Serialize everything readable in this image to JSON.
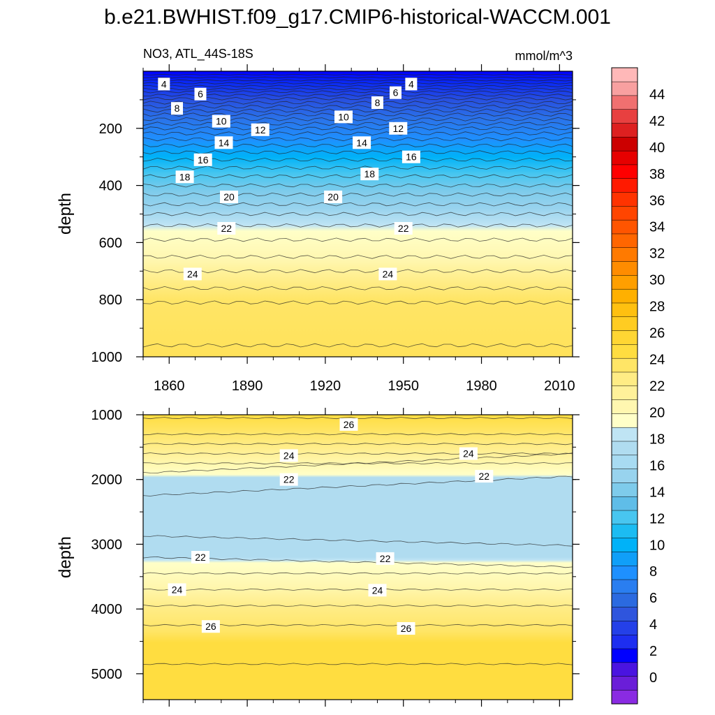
{
  "title": "b.e21.BWHIST.f09_g17.CMIP6-historical-WACCM.001",
  "chart_data": {
    "type": "contour",
    "variable": "NO3, ATL_44S-18S",
    "units": "mmol/m^3",
    "ylabel": "depth",
    "x_ticks": [
      1860,
      1890,
      1920,
      1950,
      1980,
      2010
    ],
    "xlim": [
      1850,
      2015
    ],
    "colorbar": {
      "labels": [
        0,
        2,
        4,
        6,
        8,
        10,
        12,
        14,
        16,
        18,
        20,
        22,
        24,
        26,
        28,
        30,
        32,
        34,
        36,
        38,
        40,
        42,
        44
      ],
      "colors": [
        "#8a2be2",
        "#6a1ed8",
        "#4a14e0",
        "#0000ff",
        "#1d2ef0",
        "#2440e8",
        "#2f55dd",
        "#2b6ae0",
        "#2a7ef0",
        "#1e90ff",
        "#109ff8",
        "#00b2f8",
        "#1cbcf2",
        "#48c6f0",
        "#5fbde8",
        "#7ecbeb",
        "#98d3ee",
        "#a8dbf2",
        "#b0dcf0",
        "#bfe4f4",
        "#ffffc8",
        "#fff7b0",
        "#fff19a",
        "#ffec85",
        "#ffe566",
        "#ffdd40",
        "#ffd633",
        "#ffcc22",
        "#ffc010",
        "#ffb000",
        "#ff9f00",
        "#ff8c00",
        "#ff7a00",
        "#ff6600",
        "#ff5500",
        "#ff4500",
        "#ff3300",
        "#ff1a00",
        "#ff0000",
        "#e60000",
        "#cc0000",
        "#dd2020",
        "#e84040",
        "#f07070",
        "#f8a0a0",
        "#ffb8b8"
      ]
    },
    "panels": [
      {
        "name": "upper",
        "ylim": [
          1000,
          0
        ],
        "y_ticks": [
          200,
          400,
          600,
          800,
          1000
        ],
        "contours": [
          4,
          6,
          8,
          10,
          12,
          14,
          16,
          18,
          20,
          22,
          24
        ],
        "contour_labels": [
          {
            "value": "4",
            "x": 1858,
            "y": 45
          },
          {
            "value": "6",
            "x": 1872,
            "y": 80
          },
          {
            "value": "8",
            "x": 1863,
            "y": 130
          },
          {
            "value": "10",
            "x": 1880,
            "y": 175
          },
          {
            "value": "12",
            "x": 1895,
            "y": 205
          },
          {
            "value": "14",
            "x": 1881,
            "y": 250
          },
          {
            "value": "16",
            "x": 1873,
            "y": 310
          },
          {
            "value": "18",
            "x": 1866,
            "y": 370
          },
          {
            "value": "20",
            "x": 1883,
            "y": 440
          },
          {
            "value": "22",
            "x": 1882,
            "y": 550
          },
          {
            "value": "24",
            "x": 1869,
            "y": 710
          },
          {
            "value": "4",
            "x": 1953,
            "y": 45
          },
          {
            "value": "6",
            "x": 1947,
            "y": 75
          },
          {
            "value": "8",
            "x": 1940,
            "y": 110
          },
          {
            "value": "10",
            "x": 1927,
            "y": 160
          },
          {
            "value": "12",
            "x": 1948,
            "y": 200
          },
          {
            "value": "14",
            "x": 1934,
            "y": 250
          },
          {
            "value": "16",
            "x": 1953,
            "y": 300
          },
          {
            "value": "18",
            "x": 1937,
            "y": 360
          },
          {
            "value": "20",
            "x": 1923,
            "y": 440
          },
          {
            "value": "22",
            "x": 1950,
            "y": 550
          },
          {
            "value": "24",
            "x": 1944,
            "y": 710
          }
        ]
      },
      {
        "name": "lower",
        "ylim": [
          5400,
          1000
        ],
        "y_ticks": [
          1000,
          2000,
          3000,
          4000,
          5000
        ],
        "contours": [
          22,
          24,
          26
        ],
        "contour_labels": [
          {
            "value": "26",
            "x": 1929,
            "y": 1150
          },
          {
            "value": "24",
            "x": 1906,
            "y": 1630
          },
          {
            "value": "24",
            "x": 1975,
            "y": 1600
          },
          {
            "value": "22",
            "x": 1906,
            "y": 2000
          },
          {
            "value": "22",
            "x": 1981,
            "y": 1950
          },
          {
            "value": "22",
            "x": 1872,
            "y": 3200
          },
          {
            "value": "22",
            "x": 1943,
            "y": 3220
          },
          {
            "value": "24",
            "x": 1863,
            "y": 3700
          },
          {
            "value": "24",
            "x": 1940,
            "y": 3710
          },
          {
            "value": "26",
            "x": 1876,
            "y": 4270
          },
          {
            "value": "26",
            "x": 1951,
            "y": 4300
          }
        ]
      }
    ]
  }
}
